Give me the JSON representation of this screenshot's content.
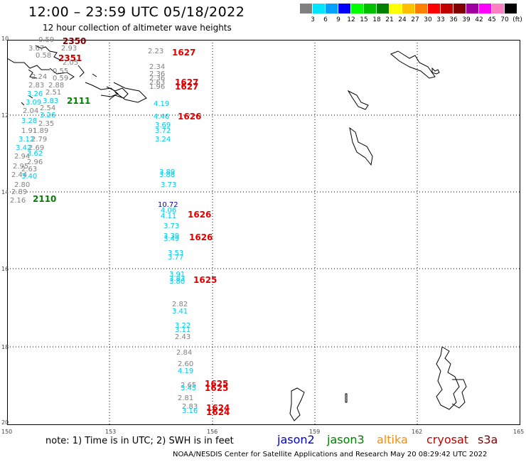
{
  "header": {
    "title": "12:00 – 23:59 UTC 05/18/2022",
    "subtitle": "12 hour collection of altimeter wave heights"
  },
  "color_scale": {
    "labels": [
      "3",
      "6",
      "9",
      "12",
      "15",
      "18",
      "21",
      "24",
      "27",
      "30",
      "33",
      "36",
      "39",
      "42",
      "45",
      "70",
      "(ft)"
    ],
    "colors": [
      "#808080",
      "#00e5ff",
      "#00a0ff",
      "#0000ff",
      "#00ff00",
      "#00c000",
      "#008000",
      "#ffff00",
      "#ffc000",
      "#ff8000",
      "#ff0000",
      "#c00000",
      "#800000",
      "#a000a0",
      "#ff00ff",
      "#ff80c0",
      "#000000"
    ]
  },
  "map": {
    "lat_labels": [
      "10",
      "12",
      "14",
      "16",
      "18",
      "20"
    ],
    "lon_labels": [
      "150",
      "153",
      "156",
      "159",
      "162",
      "165"
    ],
    "points": [
      {
        "v": "0.59",
        "c": "#808080"
      },
      {
        "v": "3.67",
        "c": "#808080"
      },
      {
        "v": "2.93",
        "c": "#808080"
      },
      {
        "v": "0.58",
        "c": "#808080"
      },
      {
        "v": "2.05",
        "c": "#808080"
      },
      {
        "v": "0.55",
        "c": "#808080"
      },
      {
        "v": "2.24",
        "c": "#808080"
      },
      {
        "v": "0.59",
        "c": "#808080"
      },
      {
        "v": "2.83",
        "c": "#808080"
      },
      {
        "v": "2.88",
        "c": "#808080"
      },
      {
        "v": "3.26",
        "c": "#00c8e6"
      },
      {
        "v": "2.51",
        "c": "#808080"
      },
      {
        "v": "3.09",
        "c": "#00c8e6"
      },
      {
        "v": "3.83",
        "c": "#00c8e6"
      },
      {
        "v": "2.04",
        "c": "#808080"
      },
      {
        "v": "2.54",
        "c": "#808080"
      },
      {
        "v": "3.28",
        "c": "#00c8e6"
      },
      {
        "v": "3.26",
        "c": "#00c8e6"
      },
      {
        "v": "2.35",
        "c": "#808080"
      },
      {
        "v": "1.91",
        "c": "#808080"
      },
      {
        "v": "1.89",
        "c": "#808080"
      },
      {
        "v": "3.12",
        "c": "#00c8e6"
      },
      {
        "v": "2.79",
        "c": "#808080"
      },
      {
        "v": "3.42",
        "c": "#00c8e6"
      },
      {
        "v": "2.69",
        "c": "#808080"
      },
      {
        "v": "3.62",
        "c": "#00c8e6"
      },
      {
        "v": "2.94",
        "c": "#808080"
      },
      {
        "v": "2.96",
        "c": "#808080"
      },
      {
        "v": "2.95",
        "c": "#808080"
      },
      {
        "v": "2.63",
        "c": "#808080"
      },
      {
        "v": "2.44",
        "c": "#808080"
      },
      {
        "v": "3.40",
        "c": "#00c8e6"
      },
      {
        "v": "2.80",
        "c": "#808080"
      },
      {
        "v": "2.89",
        "c": "#808080"
      },
      {
        "v": "2.16",
        "c": "#808080"
      },
      {
        "v": "2.23",
        "c": "#808080"
      },
      {
        "v": "2.34",
        "c": "#808080"
      },
      {
        "v": "2.36",
        "c": "#808080"
      },
      {
        "v": "2.36",
        "c": "#808080"
      },
      {
        "v": "2.63",
        "c": "#808080"
      },
      {
        "v": "1.96",
        "c": "#808080"
      },
      {
        "v": "4.19",
        "c": "#00c8e6"
      },
      {
        "v": "4.46",
        "c": "#00c8e6"
      },
      {
        "v": "3.69",
        "c": "#00c8e6"
      },
      {
        "v": "3.72",
        "c": "#00c8e6"
      },
      {
        "v": "3.24",
        "c": "#00c8e6"
      },
      {
        "v": "3.89",
        "c": "#00c8e6"
      },
      {
        "v": "3.88",
        "c": "#00c8e6"
      },
      {
        "v": "3.73",
        "c": "#00c8e6"
      },
      {
        "v": "10.72",
        "c": "#0000c8"
      },
      {
        "v": "4.06",
        "c": "#00c8e6"
      },
      {
        "v": "4.11",
        "c": "#00c8e6"
      },
      {
        "v": "3.73",
        "c": "#00c8e6"
      },
      {
        "v": "3.39",
        "c": "#00c8e6"
      },
      {
        "v": "3.49",
        "c": "#00c8e6"
      },
      {
        "v": "3.53",
        "c": "#00c8e6"
      },
      {
        "v": "3.77",
        "c": "#00c8e6"
      },
      {
        "v": "3.91",
        "c": "#00c8e6"
      },
      {
        "v": "3.83",
        "c": "#00c8e6"
      },
      {
        "v": "3.80",
        "c": "#00c8e6"
      },
      {
        "v": "2.82",
        "c": "#808080"
      },
      {
        "v": "3.41",
        "c": "#00c8e6"
      },
      {
        "v": "3.22",
        "c": "#00c8e6"
      },
      {
        "v": "3.11",
        "c": "#00c8e6"
      },
      {
        "v": "2.43",
        "c": "#808080"
      },
      {
        "v": "2.84",
        "c": "#808080"
      },
      {
        "v": "2.60",
        "c": "#808080"
      },
      {
        "v": "4.19",
        "c": "#00c8e6"
      },
      {
        "v": "2.65",
        "c": "#808080"
      },
      {
        "v": "3.45",
        "c": "#00c8e6"
      },
      {
        "v": "2.81",
        "c": "#808080"
      },
      {
        "v": "2.83",
        "c": "#808080"
      },
      {
        "v": "3.16",
        "c": "#00c8e6"
      }
    ],
    "passes": [
      {
        "v": "2350",
        "c": "#800000"
      },
      {
        "v": "2351",
        "c": "#c00000"
      },
      {
        "v": "2111",
        "c": "#008000"
      },
      {
        "v": "2110",
        "c": "#008000"
      },
      {
        "v": "1627",
        "c": "#e00000"
      },
      {
        "v": "1627",
        "c": "#e00000"
      },
      {
        "v": "1627",
        "c": "#e00000"
      },
      {
        "v": "1626",
        "c": "#e00000"
      },
      {
        "v": "1626",
        "c": "#e00000"
      },
      {
        "v": "1626",
        "c": "#e00000"
      },
      {
        "v": "1625",
        "c": "#e00000"
      },
      {
        "v": "1625",
        "c": "#e00000"
      },
      {
        "v": "1625",
        "c": "#e00000"
      },
      {
        "v": "1624",
        "c": "#e00000"
      },
      {
        "v": "1624",
        "c": "#e00000"
      }
    ]
  },
  "footer": {
    "note": "note:  1) Time is in UTC;  2) SWH is in feet",
    "satellites": [
      {
        "name": "jason2",
        "c": "#0000c8"
      },
      {
        "name": "jason3",
        "c": "#008000"
      },
      {
        "name": "altika",
        "c": "#ff8c00"
      },
      {
        "name": "cryosat",
        "c": "#c00000"
      },
      {
        "name": "s3a",
        "c": "#800000"
      }
    ],
    "credit": "NOAA/NESDIS Center for Satellite Applications and Research    May 20 08:29:42 UTC 2022"
  }
}
